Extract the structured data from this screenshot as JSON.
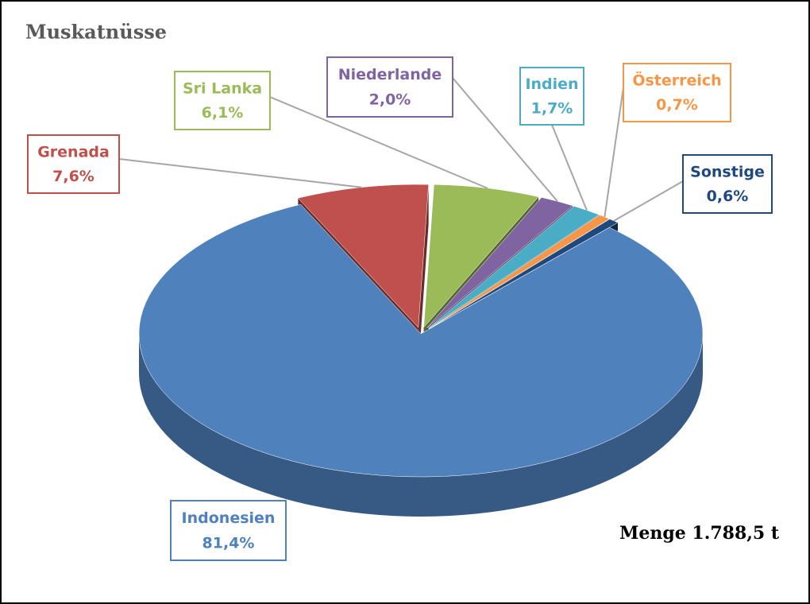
{
  "chart_data": {
    "type": "pie",
    "title": "Muskatnüsse",
    "categories": [
      "Indonesien",
      "Grenada",
      "Sri Lanka",
      "Niederlande",
      "Indien",
      "Österreich",
      "Sonstige"
    ],
    "values": [
      81.4,
      7.6,
      6.1,
      2.0,
      1.7,
      0.7,
      0.6
    ],
    "value_labels": [
      "81,4%",
      "7,6%",
      "6,1%",
      "2,0%",
      "1,7%",
      "0,7%",
      "0,6%"
    ],
    "colors": [
      "#4f81bd",
      "#c0504d",
      "#9bbb59",
      "#8064a2",
      "#4bacc6",
      "#f79646",
      "#1f497d"
    ],
    "annotation": "Menge 1.788,5  t"
  }
}
